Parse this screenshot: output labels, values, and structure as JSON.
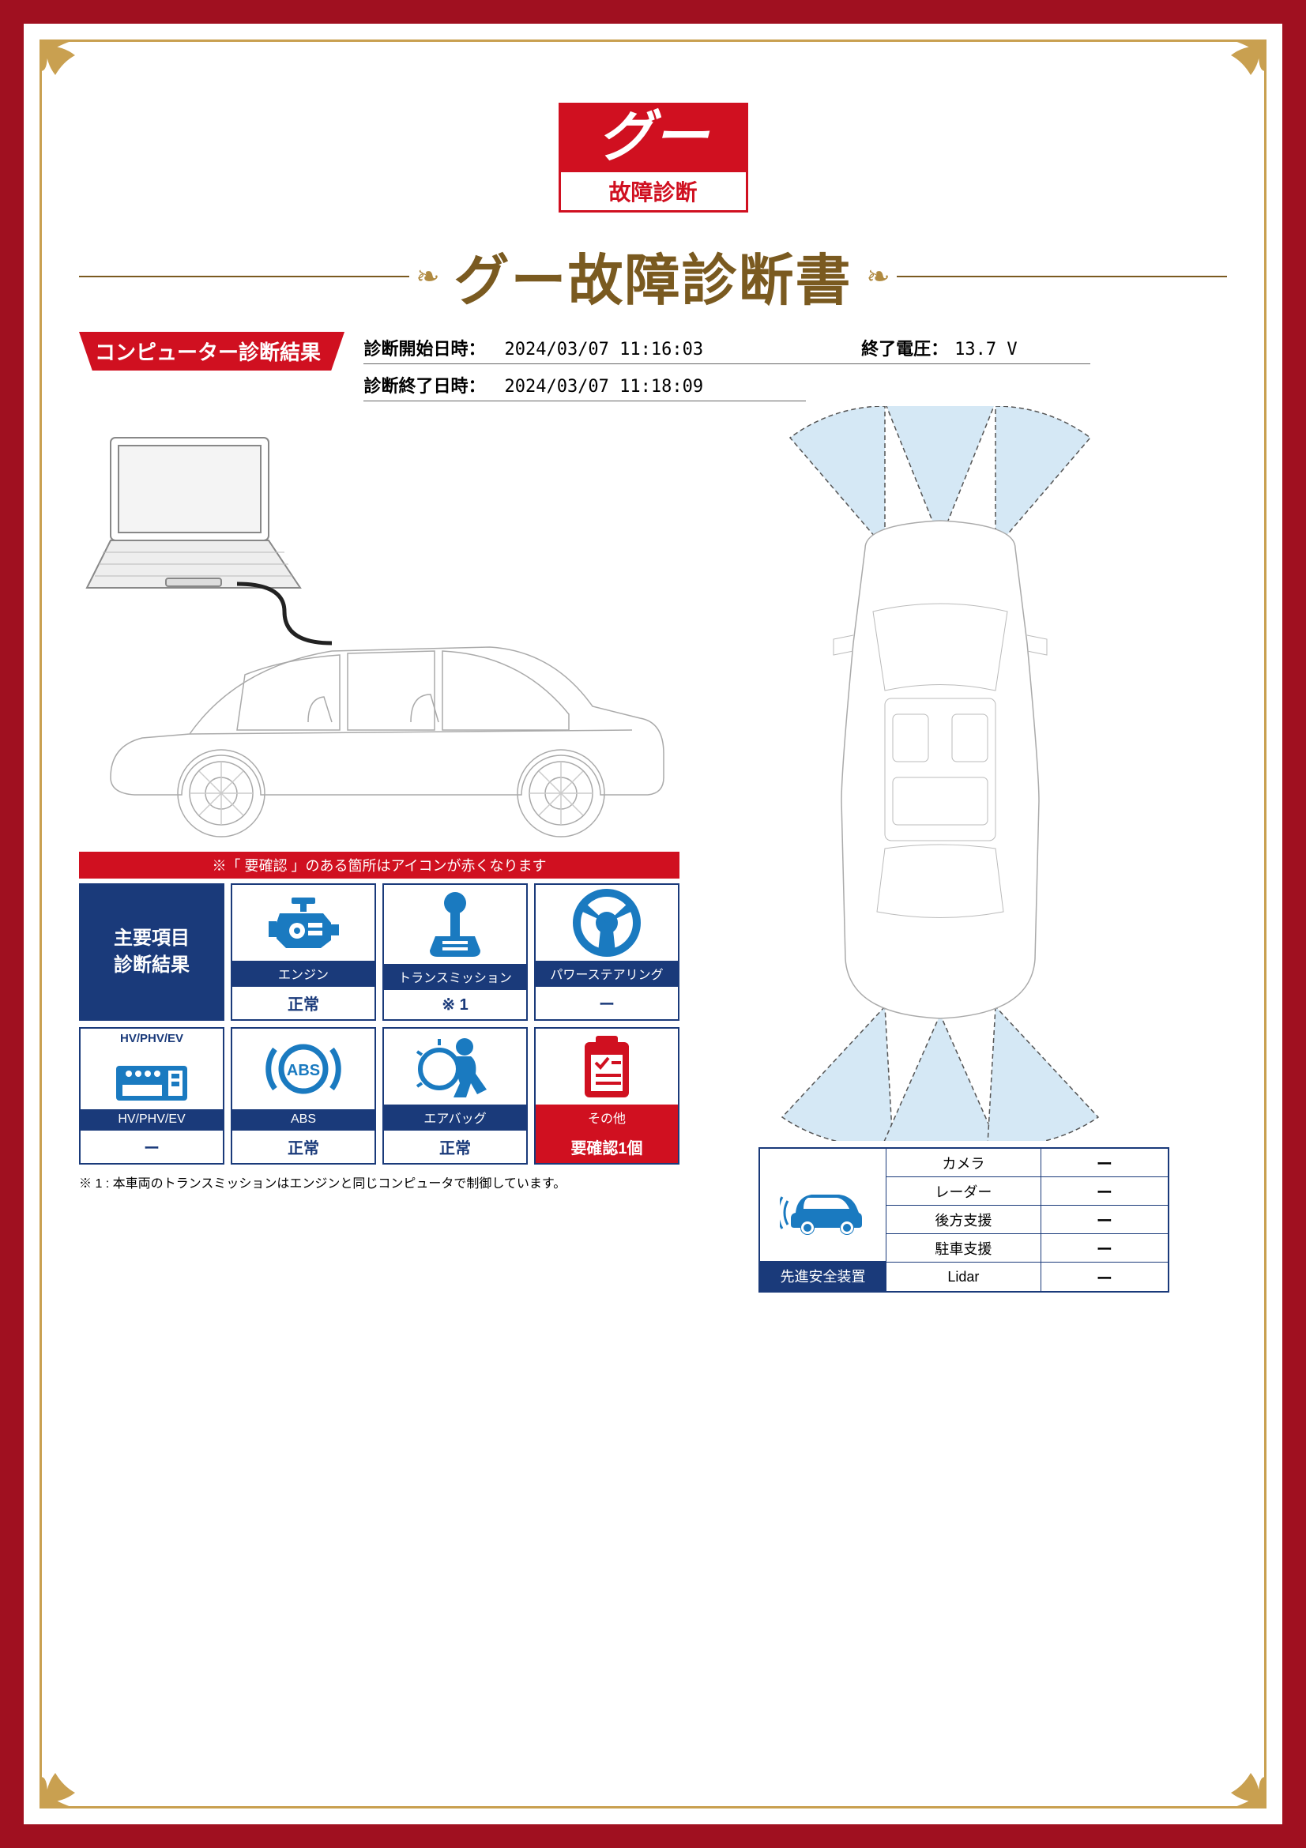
{
  "logo": {
    "top": "グー",
    "bottom": "故障診断"
  },
  "title": "グー故障診断書",
  "section_header": "コンピューター診断結果",
  "meta": {
    "start_label": "診断開始日時：",
    "start_value": "2024/03/07 11:16:03",
    "end_label": "診断終了日時：",
    "end_value": "2024/03/07 11:18:09",
    "voltage_label": "終了電圧：",
    "voltage_value": "13.7 V"
  },
  "note_bar": "※「 要確認 」のある箇所はアイコンが赤くなります",
  "header_card": "主要項目\n診断結果",
  "cards": [
    {
      "name": "エンジン",
      "status": "正常",
      "icon": "engine",
      "alert": false
    },
    {
      "name": "トランスミッション",
      "status": "※ 1",
      "icon": "transmission",
      "alert": false
    },
    {
      "name": "パワーステアリング",
      "status": "ー",
      "icon": "steering",
      "alert": false
    },
    {
      "name": "HV/PHV/EV",
      "status": "ー",
      "icon": "hvev",
      "alert": false,
      "toplabel": "HV/PHV/EV"
    },
    {
      "name": "ABS",
      "status": "正常",
      "icon": "abs",
      "alert": false
    },
    {
      "name": "エアバッグ",
      "status": "正常",
      "icon": "airbag",
      "alert": false
    },
    {
      "name": "その他",
      "status": "要確認1個",
      "icon": "other",
      "alert": true
    }
  ],
  "footnote": "※ 1 : 本車両のトランスミッションはエンジンと同じコンピュータで制御しています。",
  "safety": {
    "header": "先進安全装置",
    "rows": [
      {
        "k": "カメラ",
        "v": "ー"
      },
      {
        "k": "レーダー",
        "v": "ー"
      },
      {
        "k": "後方支援",
        "v": "ー"
      },
      {
        "k": "駐車支援",
        "v": "ー"
      },
      {
        "k": "Lidar",
        "v": "ー"
      }
    ]
  },
  "colors": {
    "frame": "#a01020",
    "gold": "#c9a050",
    "title": "#7a5a20",
    "red": "#d01020",
    "navy": "#1a3a7a",
    "blue": "#1a7ac0",
    "sensor_fill": "#d5e8f5"
  }
}
